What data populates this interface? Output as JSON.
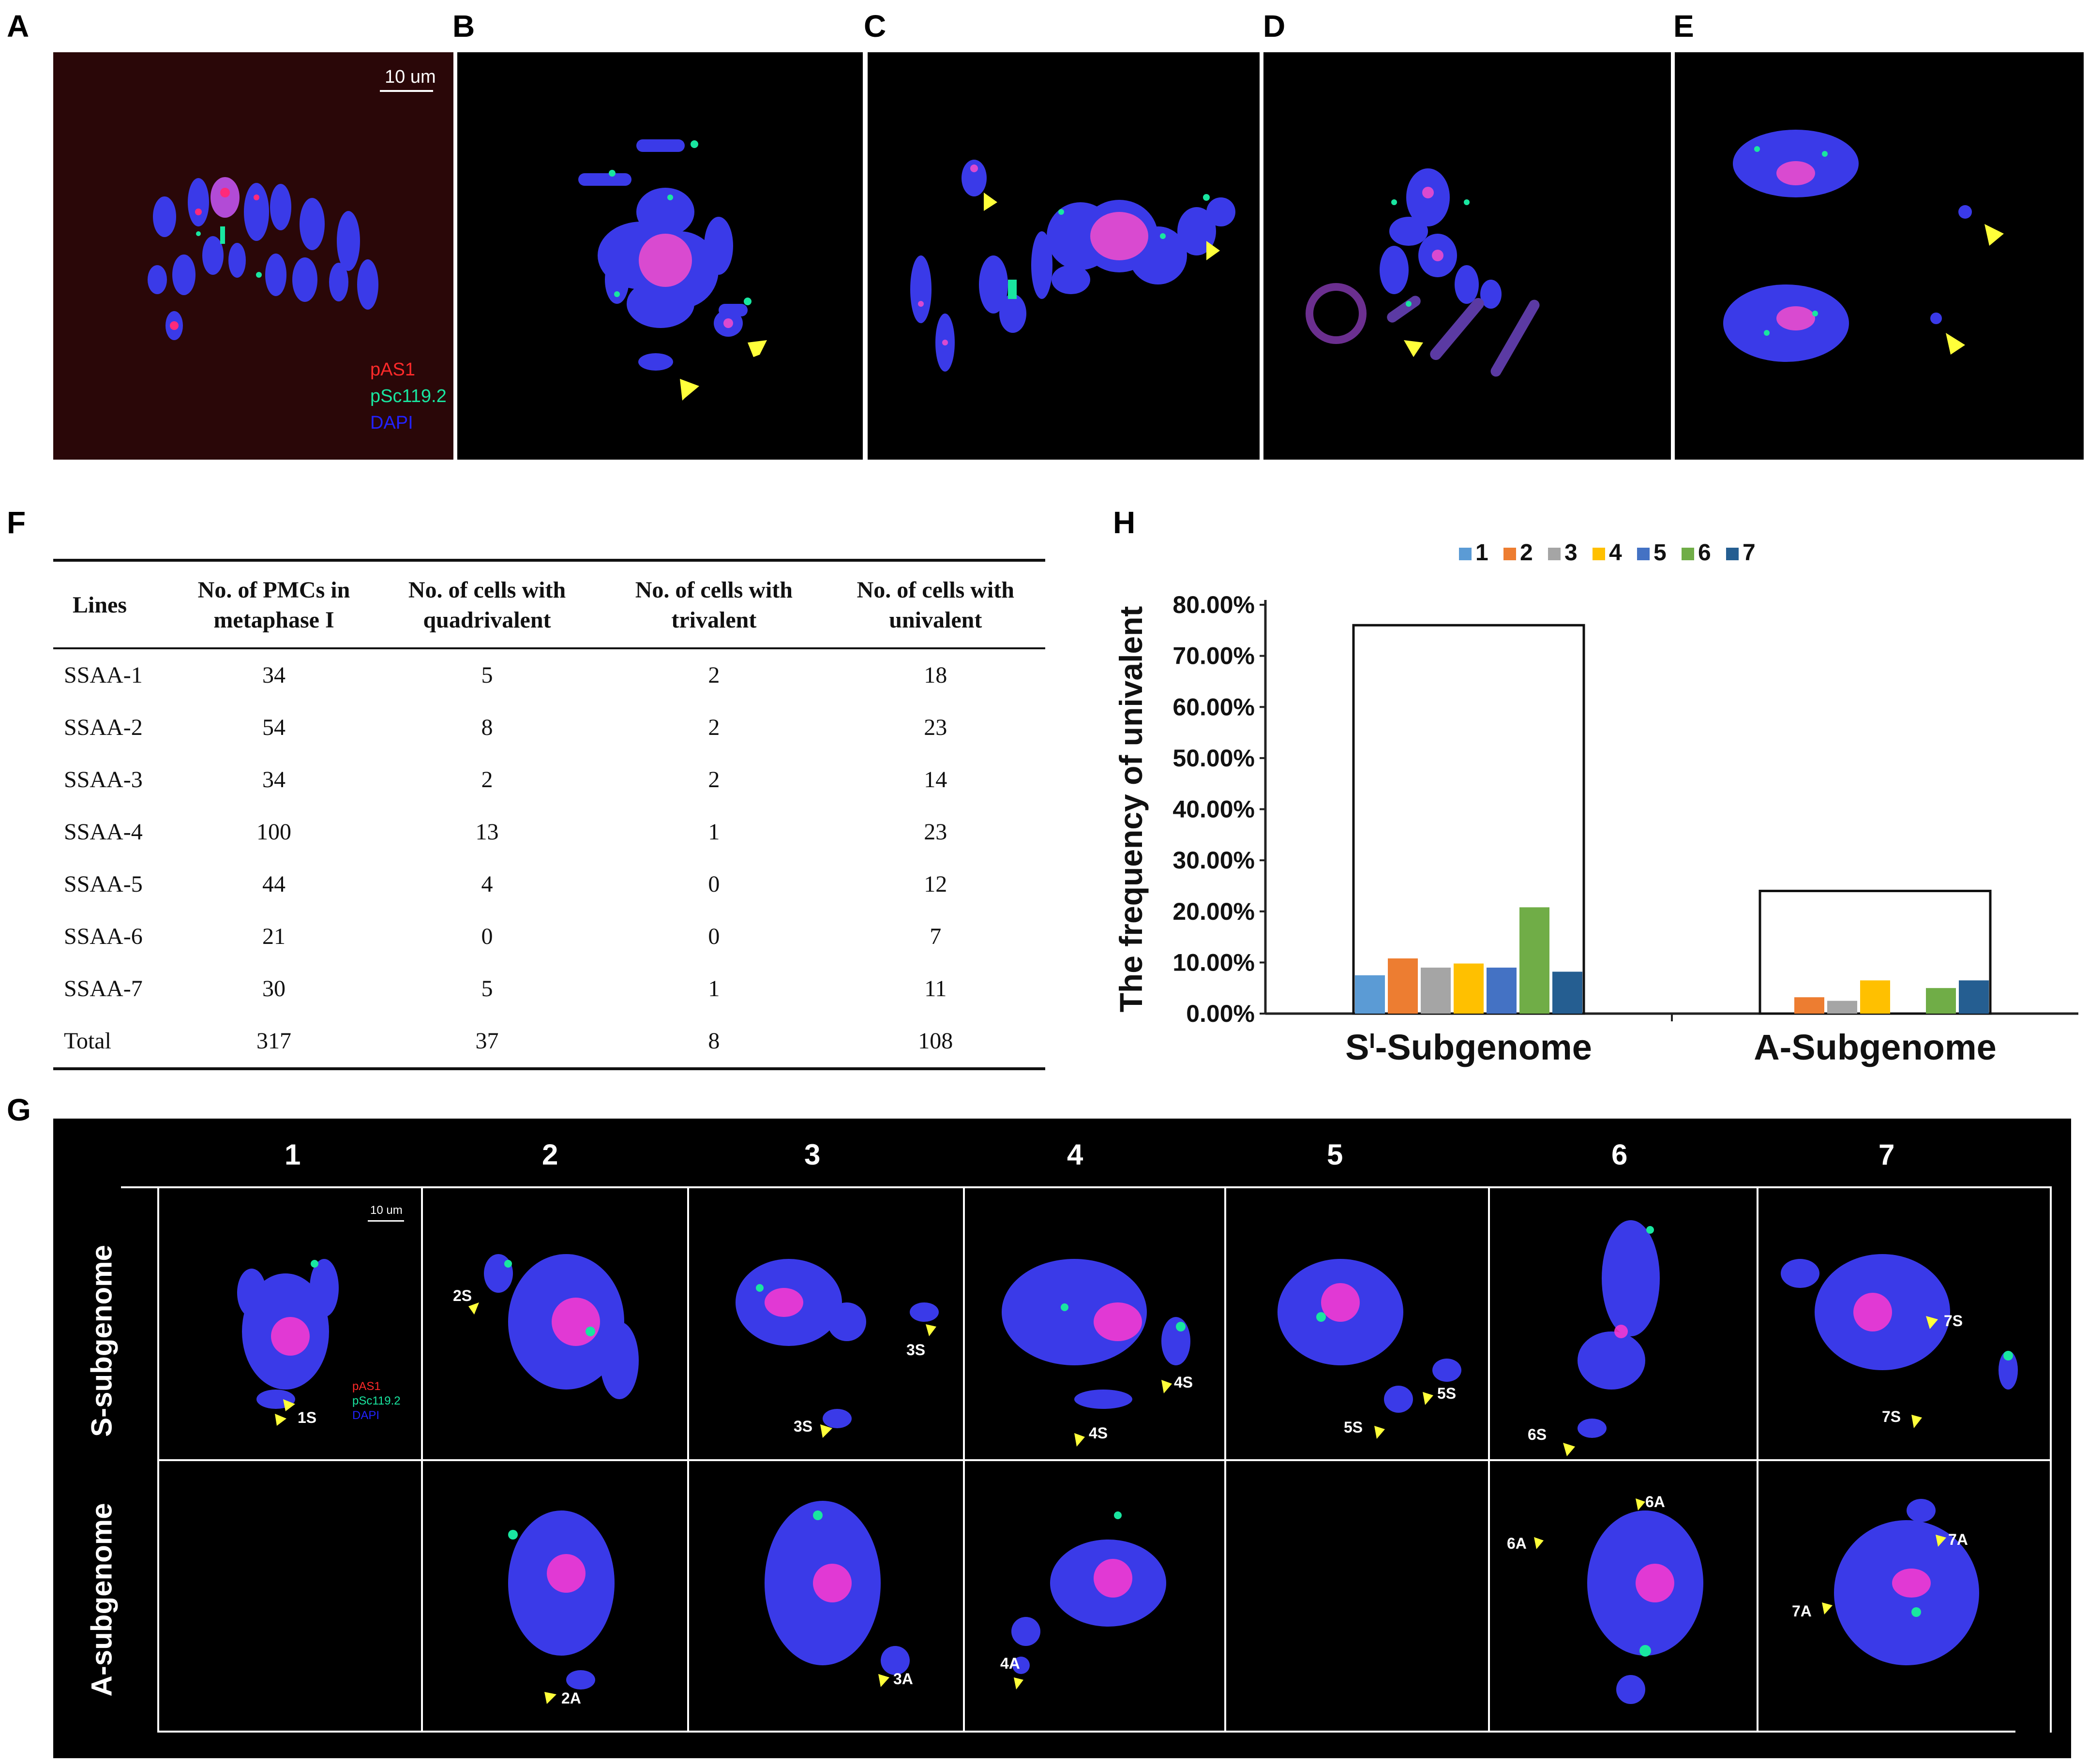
{
  "panel_labels": {
    "A": "A",
    "B": "B",
    "C": "C",
    "D": "D",
    "E": "E",
    "F": "F",
    "G": "G",
    "H": "H"
  },
  "panel_a": {
    "scale_text": "10 um",
    "legend": [
      {
        "text": "pAS1",
        "color": "#ff2a2a"
      },
      {
        "text": "pSc119.2",
        "color": "#19e6a0"
      },
      {
        "text": "DAPI",
        "color": "#2222ff"
      }
    ]
  },
  "table": {
    "headers": [
      "Lines",
      "No. of PMCs in metaphase I",
      "No. of cells with quadrivalent",
      "No. of cells with trivalent",
      "No. of cells with univalent"
    ],
    "rows": [
      [
        "SSAA-1",
        "34",
        "5",
        "2",
        "18"
      ],
      [
        "SSAA-2",
        "54",
        "8",
        "2",
        "23"
      ],
      [
        "SSAA-3",
        "34",
        "2",
        "2",
        "14"
      ],
      [
        "SSAA-4",
        "100",
        "13",
        "1",
        "23"
      ],
      [
        "SSAA-5",
        "44",
        "4",
        "0",
        "12"
      ],
      [
        "SSAA-6",
        "21",
        "0",
        "0",
        "7"
      ],
      [
        "SSAA-7",
        "30",
        "5",
        "1",
        "11"
      ],
      [
        "Total",
        "317",
        "37",
        "8",
        "108"
      ]
    ]
  },
  "panel_g": {
    "columns": [
      "1",
      "2",
      "3",
      "4",
      "5",
      "6",
      "7"
    ],
    "rows": [
      "S-subgenome",
      "A-subgenome"
    ],
    "scale_text": "10 um",
    "legend": [
      {
        "text": "pAS1",
        "color": "#ff2a2a"
      },
      {
        "text": "pSc119.2",
        "color": "#19e6a0"
      },
      {
        "text": "DAPI",
        "color": "#2222ff"
      }
    ],
    "s_labels": [
      "1S",
      "2S",
      "3S",
      "3S",
      "4S",
      "4S",
      "5S",
      "5S",
      "6S",
      "7S",
      "7S"
    ],
    "a_labels": [
      "2A",
      "3A",
      "4A",
      "6A",
      "6A",
      "7A",
      "7A"
    ]
  },
  "chart_data": {
    "type": "bar",
    "ylabel": "The frequency of univalent",
    "categories": [
      "Sᴵ-Subgenome",
      "A-Subgenome"
    ],
    "category_parts": [
      [
        "S",
        "I",
        "-Subgenome"
      ],
      [
        "A-Subgenome",
        "",
        ""
      ]
    ],
    "ylim": [
      0,
      80
    ],
    "yticks": [
      "0.00%",
      "10.00%",
      "20.00%",
      "30.00%",
      "40.00%",
      "50.00%",
      "60.00%",
      "70.00%",
      "80.00%"
    ],
    "legend_placement": "top",
    "totals": [
      76,
      24
    ],
    "series": [
      {
        "name": "1",
        "color": "#5b9bd5",
        "values": [
          7.5,
          0
        ]
      },
      {
        "name": "2",
        "color": "#ed7d31",
        "values": [
          10.8,
          3.2
        ]
      },
      {
        "name": "3",
        "color": "#a5a5a5",
        "values": [
          9.0,
          2.5
        ]
      },
      {
        "name": "4",
        "color": "#ffc000",
        "values": [
          9.8,
          6.5
        ]
      },
      {
        "name": "5",
        "color": "#4472c4",
        "values": [
          9.0,
          0
        ]
      },
      {
        "name": "6",
        "color": "#70ad47",
        "values": [
          20.8,
          5.0
        ]
      },
      {
        "name": "7",
        "color": "#255e91",
        "values": [
          8.2,
          6.5
        ]
      }
    ]
  }
}
